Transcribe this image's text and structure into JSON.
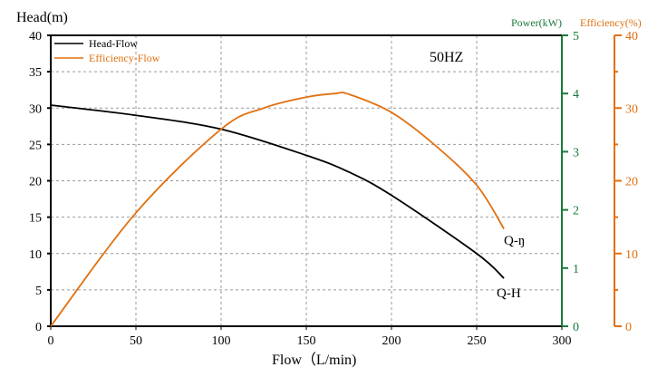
{
  "chart_data": {
    "type": "line",
    "annotation": "50HZ",
    "xlabel": "Flow（L/min)",
    "xlim": [
      0,
      300
    ],
    "xticks": [
      0,
      50,
      100,
      150,
      200,
      250,
      300
    ],
    "grid": true,
    "legend_position": "top-left",
    "axes": {
      "left": {
        "label": "Head(m)",
        "range": [
          0,
          40
        ],
        "ticks": [
          0,
          5,
          10,
          15,
          20,
          25,
          30,
          35,
          40
        ],
        "color": "#000000"
      },
      "power": {
        "label": "Power(kW)",
        "range": [
          0,
          5
        ],
        "ticks": [
          0,
          1,
          2,
          3,
          4,
          5
        ],
        "color": "#1a7a3a"
      },
      "efficiency": {
        "label": "Efficiency(%)",
        "range": [
          0,
          40
        ],
        "ticks": [
          0,
          10,
          20,
          30,
          40
        ],
        "color": "#e07010"
      }
    },
    "series": [
      {
        "name": "Head-Flow",
        "curve_label": "Q-H",
        "axis": "left",
        "color": "#000000",
        "x": [
          0,
          50,
          100,
          150,
          175,
          200,
          250,
          266
        ],
        "y": [
          30.4,
          29.0,
          27.1,
          23.5,
          21.2,
          18.0,
          10.0,
          6.6
        ]
      },
      {
        "name": "Efficiency-Flow",
        "curve_label": "Q-ŋ",
        "axis": "efficiency",
        "color": "#e07010",
        "x": [
          0,
          50,
          100,
          125,
          150,
          167,
          175,
          200,
          225,
          250,
          266
        ],
        "y": [
          0,
          15.6,
          27.1,
          30.0,
          31.5,
          32.0,
          31.9,
          29.4,
          25.0,
          19.4,
          13.4
        ]
      }
    ]
  }
}
